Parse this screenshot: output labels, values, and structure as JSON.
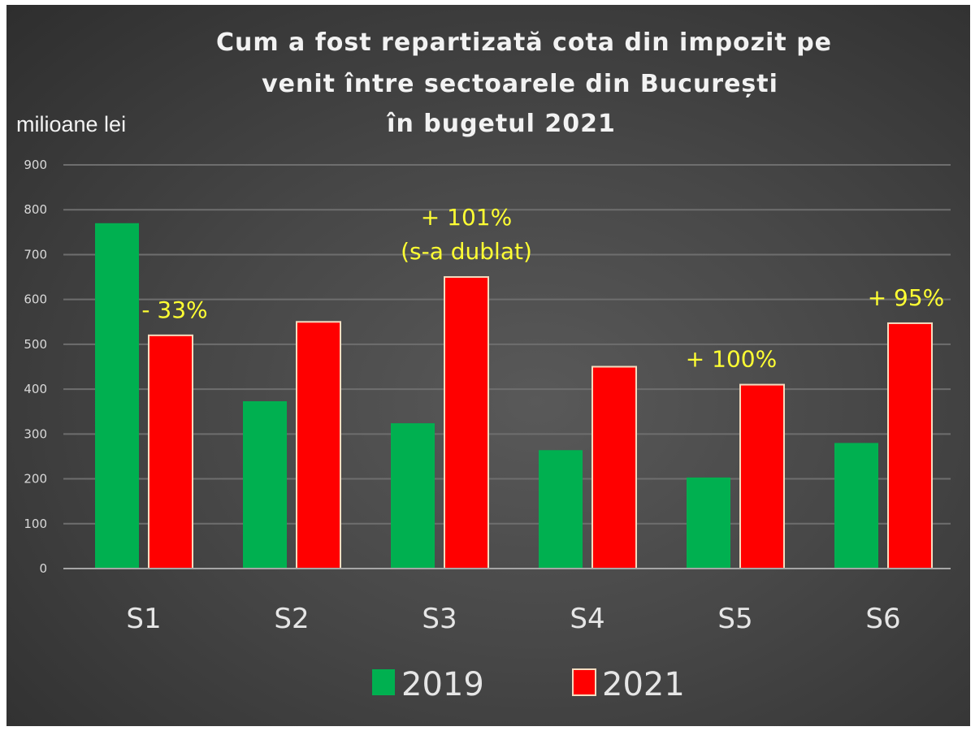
{
  "chart_data": {
    "type": "bar",
    "title": [
      "Cum a fost repartizată cota din impozit pe",
      "venit între sectoarele din București",
      "în bugetul 2021"
    ],
    "ylabel": "milioane lei",
    "xlabel": "",
    "ylim": [
      0,
      900
    ],
    "yticks": [
      0,
      100,
      200,
      300,
      400,
      500,
      600,
      700,
      800,
      900
    ],
    "ytick_labels": [
      "0",
      "100",
      "200",
      "300",
      "400",
      "500",
      "600",
      "700",
      "800",
      "900"
    ],
    "grid": true,
    "categories": [
      "S1",
      "S2",
      "S3",
      "S4",
      "S5",
      "S6"
    ],
    "series": [
      {
        "name": "2019",
        "color": "#00b050",
        "values": [
          770,
          373,
          324,
          264,
          203,
          280
        ]
      },
      {
        "name": "2021",
        "color": "#ff0000",
        "values": [
          520,
          550,
          650,
          450,
          410,
          547
        ]
      }
    ],
    "annotations": [
      {
        "category": "S1",
        "lines": [
          "- 33%"
        ]
      },
      {
        "category": "S3",
        "lines": [
          "+ 101%",
          "(s-a dublat)"
        ]
      },
      {
        "category": "S5",
        "lines": [
          "+ 100%"
        ]
      },
      {
        "category": "S6",
        "lines": [
          "+ 95%"
        ]
      }
    ],
    "legend": {
      "position": "bottom",
      "entries": [
        "2019",
        "2021"
      ]
    },
    "annotation_color": "#ffff33"
  }
}
